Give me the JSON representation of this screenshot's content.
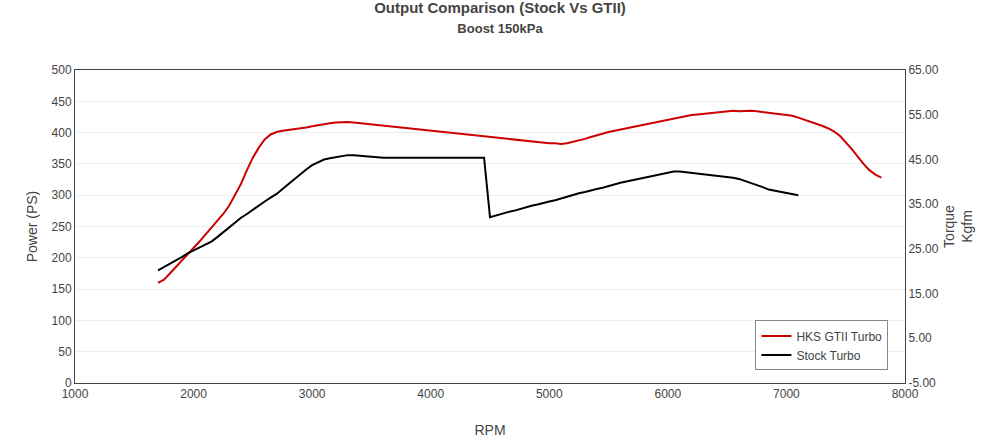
{
  "chart_data": {
    "type": "line",
    "title": "Output Comparison (Stock Vs GTII)",
    "subtitle": "Boost 150kPa",
    "x_label": "RPM",
    "y_label": "Power (PS)",
    "y2_label": "Torque\nKgfm",
    "xlim": [
      1000,
      8000
    ],
    "xticks": [
      1000,
      2000,
      3000,
      4000,
      5000,
      6000,
      7000,
      8000
    ],
    "ylim": [
      0,
      500
    ],
    "yticks": [
      0,
      50,
      100,
      150,
      200,
      250,
      300,
      350,
      400,
      450,
      500
    ],
    "y2lim": [
      -5.0,
      65.0
    ],
    "y2ticks": [
      {
        "value": -5.0,
        "label": "-5.00"
      },
      {
        "value": 5.0,
        "label": "5.00"
      },
      {
        "value": 15.0,
        "label": "15.00"
      },
      {
        "value": 25.0,
        "label": "25.00"
      },
      {
        "value": 35.0,
        "label": "35.00"
      },
      {
        "value": 45.0,
        "label": "45.00"
      },
      {
        "value": 55.0,
        "label": "55.00"
      },
      {
        "value": 65.0,
        "label": "65.00"
      }
    ],
    "grid": true,
    "legend": "lower right",
    "series": [
      {
        "name": "HKS GTII Turbo",
        "color": "#cc0000",
        "x": [
          1700,
          1750,
          1800,
          1850,
          1900,
          1950,
          2000,
          2050,
          2100,
          2150,
          2200,
          2250,
          2300,
          2350,
          2400,
          2450,
          2500,
          2550,
          2600,
          2650,
          2700,
          2750,
          2800,
          2850,
          2900,
          2950,
          3000,
          3050,
          3100,
          3150,
          3200,
          3250,
          3300,
          3350,
          3400,
          3450,
          3500,
          3550,
          3600,
          3650,
          3700,
          3750,
          3800,
          3850,
          3900,
          3950,
          4000,
          4050,
          4100,
          4150,
          4200,
          4250,
          4300,
          4350,
          4400,
          4450,
          4500,
          4550,
          4600,
          4650,
          4700,
          4750,
          4800,
          4850,
          4900,
          4950,
          5000,
          5050,
          5100,
          5150,
          5200,
          5250,
          5300,
          5350,
          5400,
          5450,
          5500,
          5550,
          5600,
          5650,
          5700,
          5750,
          5800,
          5850,
          5900,
          5950,
          6000,
          6050,
          6100,
          6150,
          6200,
          6250,
          6300,
          6350,
          6400,
          6450,
          6500,
          6550,
          6600,
          6650,
          6700,
          6750,
          6800,
          6850,
          6900,
          6950,
          7000,
          7050,
          7100,
          7150,
          7200,
          7250,
          7300,
          7350,
          7400,
          7450,
          7500,
          7550,
          7600,
          7650,
          7700,
          7750,
          7800
        ],
        "values": [
          160,
          165,
          175,
          185,
          195,
          205,
          215,
          226,
          237,
          248,
          258,
          270,
          283,
          300,
          318,
          340,
          360,
          376,
          389,
          397,
          401,
          403,
          404,
          405,
          406,
          408,
          410,
          412,
          414,
          415,
          416,
          417,
          417,
          416,
          415,
          414,
          413,
          412,
          411,
          410,
          409,
          408,
          407,
          406,
          405,
          404,
          403,
          402,
          401,
          400,
          399,
          398,
          397,
          396,
          395,
          394,
          393,
          392,
          391,
          390,
          389,
          388,
          387,
          386,
          385,
          384,
          383,
          383,
          382,
          383,
          385,
          387,
          390,
          393,
          396,
          399,
          401,
          403,
          405,
          407,
          409,
          411,
          413,
          415,
          417,
          419,
          421,
          423,
          425,
          427,
          428,
          429,
          430,
          431,
          432,
          433,
          434,
          435,
          434,
          435,
          435,
          434,
          433,
          432,
          431,
          430,
          429,
          427,
          424,
          421,
          418,
          415,
          411,
          407,
          402,
          395,
          385,
          374,
          362,
          350,
          340,
          333,
          328
        ]
      },
      {
        "name": "Stock Turbo",
        "color": "#000000",
        "x": [
          1700,
          1750,
          1800,
          1850,
          1900,
          1950,
          2000,
          2050,
          2100,
          2150,
          2200,
          2250,
          2300,
          2350,
          2400,
          2450,
          2500,
          2550,
          2600,
          2650,
          2700,
          2750,
          2800,
          2850,
          2900,
          2950,
          3000,
          3050,
          3100,
          3150,
          3200,
          3250,
          3300,
          3350,
          3400,
          3450,
          3500,
          3550,
          3600,
          3650,
          3700,
          3750,
          3800,
          3850,
          3900,
          3950,
          4000,
          4050,
          4100,
          4150,
          4200,
          4250,
          4300,
          4350,
          4400,
          4450,
          4500,
          4550,
          4600,
          4650,
          4700,
          4750,
          4800,
          4850,
          4900,
          4950,
          5000,
          5050,
          5100,
          5150,
          5200,
          5250,
          5300,
          5350,
          5400,
          5450,
          5500,
          5550,
          5600,
          5650,
          5700,
          5750,
          5800,
          5850,
          5900,
          5950,
          6000,
          6050,
          6100,
          6150,
          6200,
          6250,
          6300,
          6350,
          6400,
          6450,
          6500,
          6550,
          6600,
          6650,
          6700,
          6750,
          6800,
          6850,
          6900,
          6950,
          7000,
          7050,
          7100
        ],
        "values": [
          180,
          185,
          191,
          196,
          201,
          207,
          212,
          217,
          222,
          226,
          233,
          241,
          249,
          257,
          264,
          270,
          277,
          284,
          290,
          296,
          302,
          310,
          318,
          326,
          334,
          341,
          348,
          353,
          357,
          359,
          361,
          363,
          364,
          364,
          363,
          362,
          361,
          360,
          360,
          360,
          360,
          360,
          360,
          360,
          360,
          360,
          360,
          360,
          360,
          360,
          360,
          360,
          360,
          360,
          360,
          360,
          265,
          268,
          271,
          273,
          275,
          278,
          281,
          283,
          285,
          288,
          290,
          292,
          295,
          298,
          300,
          303,
          305,
          308,
          310,
          312,
          315,
          317,
          320,
          322,
          324,
          326,
          328,
          330,
          332,
          334,
          336,
          338,
          338,
          337,
          336,
          335,
          334,
          333,
          332,
          331,
          330,
          328,
          326,
          323,
          320,
          316,
          313,
          309,
          307,
          305,
          303,
          301,
          300
        ]
      }
    ]
  }
}
